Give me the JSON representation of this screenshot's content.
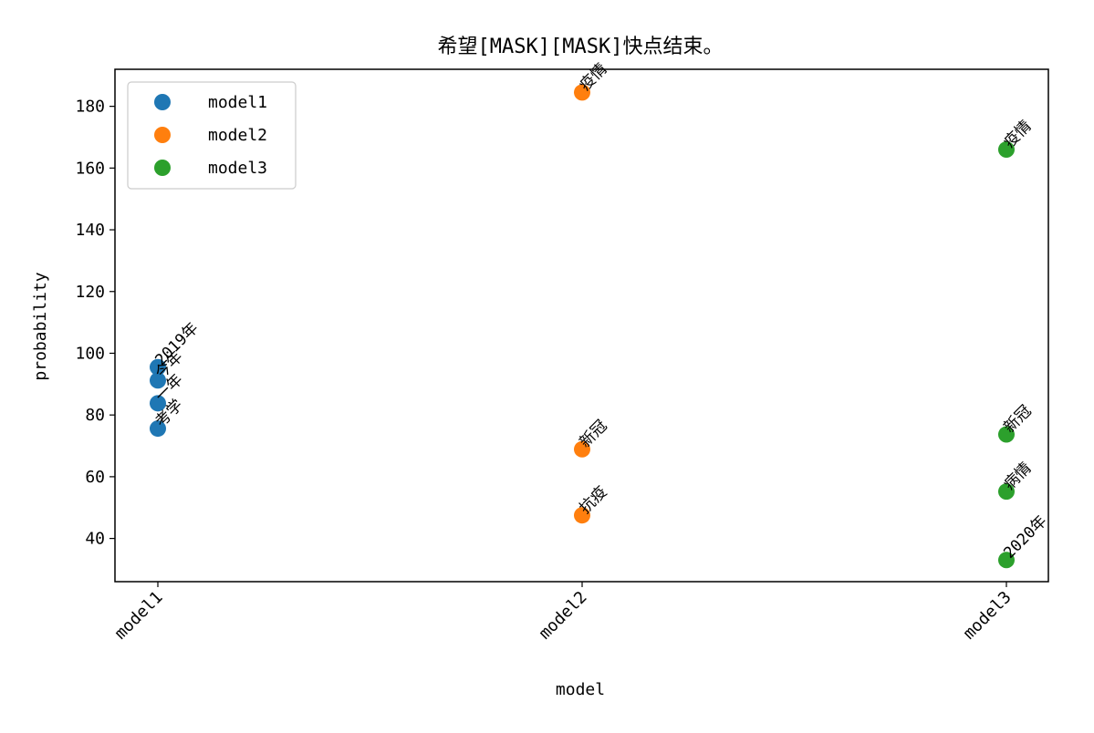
{
  "chart_data": {
    "type": "scatter",
    "title": "希望[MASK][MASK]快点结束。",
    "xlabel": "model",
    "ylabel": "probability",
    "categories": [
      "model1",
      "model2",
      "model3"
    ],
    "ylim": [
      26,
      192
    ],
    "yticks": [
      40,
      60,
      80,
      100,
      120,
      140,
      160,
      180
    ],
    "legend_position": "top-left",
    "grid": false,
    "series": [
      {
        "name": "model1",
        "color": "#1f77b4",
        "points": [
          {
            "x": "model1",
            "y": 95.5,
            "label": "2019年"
          },
          {
            "x": "model1",
            "y": 91.2,
            "label": "今年"
          },
          {
            "x": "model1",
            "y": 83.8,
            "label": "一年"
          },
          {
            "x": "model1",
            "y": 75.6,
            "label": "考学"
          }
        ]
      },
      {
        "name": "model2",
        "color": "#ff7f0e",
        "points": [
          {
            "x": "model2",
            "y": 184.5,
            "label": "疫情"
          },
          {
            "x": "model2",
            "y": 68.9,
            "label": "新冠"
          },
          {
            "x": "model2",
            "y": 47.5,
            "label": "抗疫"
          }
        ]
      },
      {
        "name": "model3",
        "color": "#2ca02c",
        "points": [
          {
            "x": "model3",
            "y": 166.0,
            "label": "疫情"
          },
          {
            "x": "model3",
            "y": 73.7,
            "label": "新冠"
          },
          {
            "x": "model3",
            "y": 55.2,
            "label": "病情"
          },
          {
            "x": "model3",
            "y": 33.0,
            "label": "2020年"
          }
        ]
      }
    ]
  }
}
